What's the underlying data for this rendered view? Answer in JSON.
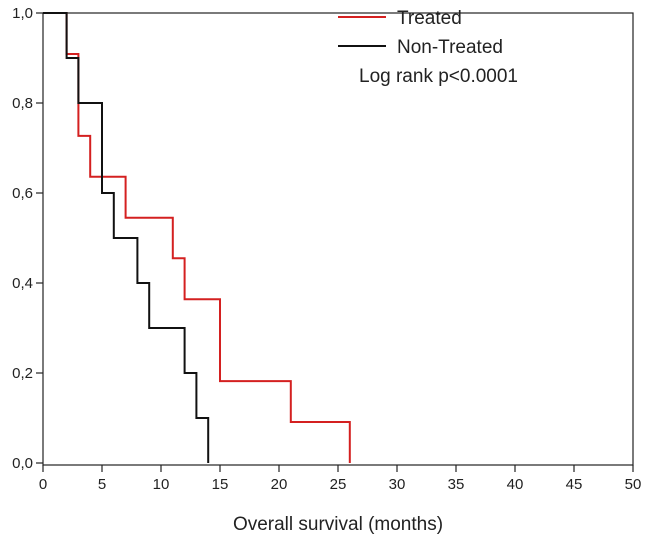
{
  "chart_data": {
    "type": "line",
    "subtype": "kaplan-meier-step",
    "title": "",
    "xlabel": "Overall survival (months)",
    "ylabel": "",
    "xlim": [
      0,
      50
    ],
    "ylim": [
      0,
      1.0
    ],
    "x_ticks": [
      0,
      5,
      10,
      15,
      20,
      25,
      30,
      35,
      40,
      45,
      50
    ],
    "x_tick_labels": [
      "0",
      "5",
      "10",
      "15",
      "20",
      "25",
      "30",
      "35",
      "40",
      "45",
      "50"
    ],
    "y_ticks": [
      0,
      0.2,
      0.4,
      0.6,
      0.8,
      1.0
    ],
    "y_tick_labels": [
      "0,0",
      "0,2",
      "0,4",
      "0,6",
      "0,8",
      "1,0"
    ],
    "grid": false,
    "legend_position": "top-right",
    "annotation": "Log rank p<0.0001",
    "series": [
      {
        "name": "Treated",
        "color": "#d42020",
        "x": [
          0,
          2,
          3,
          4,
          7,
          11,
          12,
          15,
          21,
          26,
          26
        ],
        "y": [
          1.0,
          0.909,
          0.727,
          0.636,
          0.545,
          0.455,
          0.364,
          0.182,
          0.091,
          0.091,
          0.0
        ]
      },
      {
        "name": "Non-Treated",
        "color": "#111111",
        "x": [
          0,
          2,
          3,
          5,
          6,
          8,
          9,
          12,
          13,
          14,
          14
        ],
        "y": [
          1.0,
          0.9,
          0.8,
          0.6,
          0.5,
          0.4,
          0.3,
          0.2,
          0.1,
          0.1,
          0.0
        ]
      }
    ]
  }
}
